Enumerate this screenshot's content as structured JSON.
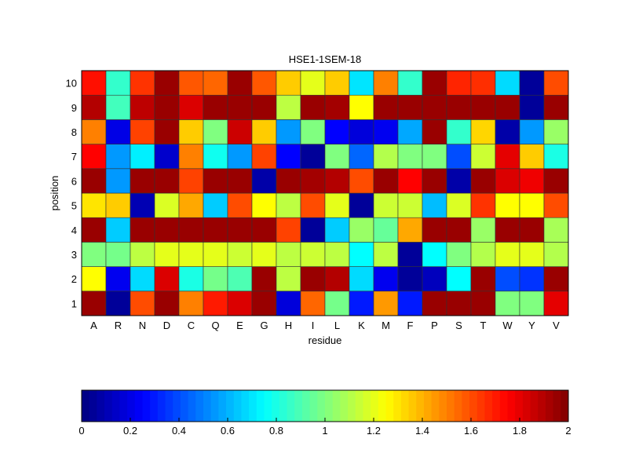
{
  "chart_data": {
    "type": "heatmap",
    "title": "HSE1-1SEM-18",
    "xlabel": "residue",
    "ylabel": "position",
    "x_categories": [
      "A",
      "R",
      "N",
      "D",
      "C",
      "Q",
      "E",
      "G",
      "H",
      "I",
      "L",
      "K",
      "M",
      "F",
      "P",
      "S",
      "T",
      "W",
      "Y",
      "V"
    ],
    "y_categories": [
      "1",
      "2",
      "3",
      "4",
      "5",
      "6",
      "7",
      "8",
      "9",
      "10"
    ],
    "colormap": "jet",
    "clim": [
      0,
      2
    ],
    "colorbar": {
      "location": "bottom",
      "ticks": [
        "0",
        "0.2",
        "0.4",
        "0.6",
        "0.8",
        "1",
        "1.2",
        "1.4",
        "1.6",
        "1.8",
        "2"
      ]
    },
    "values": [
      [
        1.95,
        0.05,
        1.6,
        1.95,
        1.5,
        1.7,
        1.82,
        1.95,
        0.18,
        1.55,
        0.98,
        0.3,
        1.45,
        0.3,
        1.95,
        1.95,
        1.95,
        1.0,
        1.0,
        1.8
      ],
      [
        1.25,
        0.22,
        0.68,
        1.82,
        0.8,
        0.98,
        0.9,
        1.95,
        1.12,
        1.95,
        1.9,
        0.68,
        0.22,
        0.05,
        0.12,
        0.75,
        1.95,
        0.4,
        0.35,
        1.95
      ],
      [
        1.0,
        0.98,
        1.12,
        1.2,
        1.2,
        1.2,
        1.15,
        1.2,
        1.12,
        1.15,
        1.12,
        0.75,
        1.12,
        0.05,
        0.75,
        1.0,
        1.1,
        1.2,
        1.2,
        1.1
      ],
      [
        1.95,
        0.65,
        1.95,
        1.95,
        1.95,
        1.95,
        1.95,
        1.95,
        1.62,
        0.05,
        0.65,
        1.05,
        0.95,
        1.42,
        1.95,
        1.95,
        1.05,
        1.95,
        1.95,
        1.08
      ],
      [
        1.3,
        1.35,
        0.1,
        1.18,
        1.42,
        0.65,
        1.6,
        1.25,
        1.12,
        1.6,
        1.2,
        0.05,
        1.15,
        1.15,
        0.62,
        1.18,
        1.65,
        1.25,
        1.25,
        1.6
      ],
      [
        1.95,
        0.55,
        1.95,
        1.95,
        1.62,
        1.95,
        1.95,
        0.08,
        1.95,
        1.93,
        1.9,
        1.6,
        1.95,
        1.75,
        1.95,
        0.08,
        1.95,
        1.82,
        1.78,
        1.95
      ],
      [
        1.75,
        0.55,
        0.72,
        0.15,
        1.5,
        0.78,
        0.55,
        1.62,
        0.25,
        0.05,
        1.0,
        0.45,
        1.1,
        1.0,
        1.0,
        0.4,
        1.15,
        1.8,
        1.35,
        0.8
      ],
      [
        1.5,
        0.2,
        1.62,
        1.95,
        1.35,
        1.0,
        1.85,
        1.35,
        0.55,
        1.0,
        0.25,
        0.18,
        0.22,
        0.58,
        1.95,
        0.85,
        1.33,
        0.08,
        0.55,
        1.05
      ],
      [
        1.9,
        0.88,
        1.88,
        1.95,
        1.82,
        1.95,
        1.95,
        1.95,
        1.12,
        1.95,
        1.93,
        1.25,
        1.95,
        1.95,
        1.95,
        1.95,
        1.95,
        1.95,
        0.05,
        1.95
      ],
      [
        1.72,
        0.85,
        1.65,
        1.95,
        1.58,
        1.55,
        1.95,
        1.58,
        1.35,
        1.2,
        1.35,
        0.7,
        1.5,
        0.85,
        1.95,
        1.68,
        1.66,
        0.68,
        0.05,
        1.6
      ]
    ]
  }
}
